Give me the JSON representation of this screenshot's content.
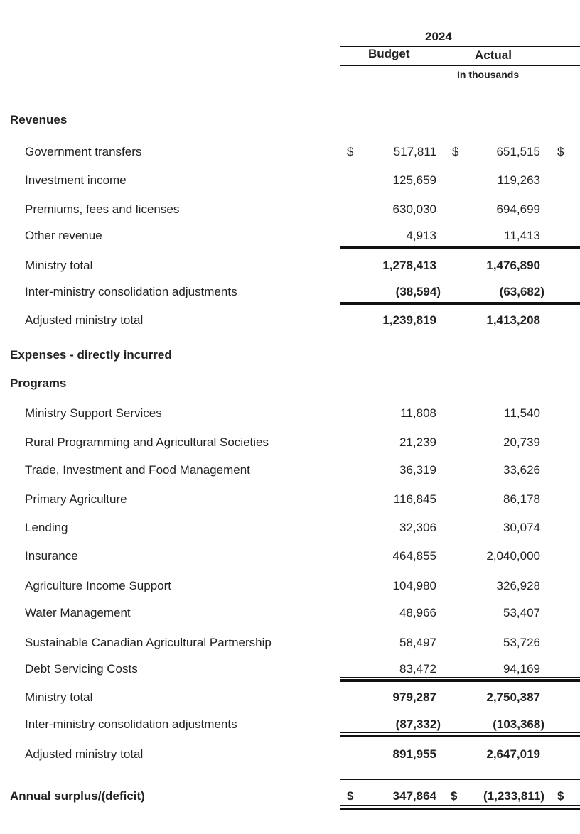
{
  "header": {
    "year": "2024",
    "col_budget": "Budget",
    "col_actual": "Actual",
    "units": "In thousands"
  },
  "revenues": {
    "heading": "Revenues",
    "rows": [
      {
        "label": "Government transfers",
        "cur1": "$",
        "budget": "517,811",
        "cur2": "$",
        "actual": "651,515",
        "cur3": "$"
      },
      {
        "label": "Investment income",
        "budget": "125,659",
        "actual": "119,263"
      },
      {
        "label": "Premiums, fees and licenses",
        "budget": "630,030",
        "actual": "694,699"
      },
      {
        "label": "Other revenue",
        "budget": "4,913",
        "actual": "11,413"
      },
      {
        "label": "Ministry total",
        "budget": "1,278,413",
        "actual": "1,476,890"
      },
      {
        "label": "Inter-ministry consolidation adjustments",
        "budget": "(38,594)",
        "actual": "(63,682)"
      },
      {
        "label": "Adjusted ministry total",
        "budget": "1,239,819",
        "actual": "1,413,208"
      }
    ]
  },
  "expenses": {
    "heading": "Expenses - directly incurred",
    "subheading": "Programs",
    "rows": [
      {
        "label": "Ministry Support Services",
        "budget": "11,808",
        "actual": "11,540"
      },
      {
        "label": "Rural Programming and Agricultural Societies",
        "budget": "21,239",
        "actual": "20,739"
      },
      {
        "label": "Trade, Investment and Food Management",
        "budget": "36,319",
        "actual": "33,626"
      },
      {
        "label": "Primary Agriculture",
        "budget": "116,845",
        "actual": "86,178"
      },
      {
        "label": "Lending",
        "budget": "32,306",
        "actual": "30,074"
      },
      {
        "label": "Insurance",
        "budget": "464,855",
        "actual": "2,040,000"
      },
      {
        "label": "Agriculture Income Support",
        "budget": "104,980",
        "actual": "326,928"
      },
      {
        "label": "Water Management",
        "budget": "48,966",
        "actual": "53,407"
      },
      {
        "label": "Sustainable Canadian Agricultural Partnership",
        "budget": "58,497",
        "actual": "53,726"
      },
      {
        "label": "Debt Servicing Costs",
        "budget": "83,472",
        "actual": "94,169"
      },
      {
        "label": "Ministry total",
        "budget": "979,287",
        "actual": "2,750,387"
      },
      {
        "label": "Inter-ministry consolidation adjustments",
        "budget": "(87,332)",
        "actual": "(103,368)"
      },
      {
        "label": "Adjusted ministry total",
        "budget": "891,955",
        "actual": "2,647,019"
      }
    ]
  },
  "surplus": {
    "label": "Annual surplus/(deficit)",
    "cur1": "$",
    "budget": "347,864",
    "cur2": "$",
    "actual": "(1,233,811)",
    "cur3": "$"
  }
}
